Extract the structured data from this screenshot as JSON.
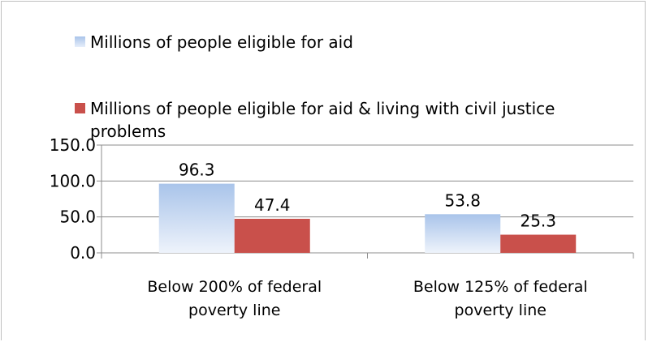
{
  "chart_data": {
    "type": "bar",
    "categories": [
      [
        "Below 200% of federal",
        "poverty line"
      ],
      [
        "Below 125% of federal",
        "poverty line"
      ]
    ],
    "series": [
      {
        "name": "Millions of people eligible for aid",
        "values": [
          96.3,
          53.8
        ],
        "value_labels": [
          "96.3",
          "53.8"
        ],
        "color": "#b9d0f0"
      },
      {
        "name": "Millions of people eligible for aid & living with civil justice problems",
        "values": [
          47.4,
          25.3
        ],
        "value_labels": [
          "47.4",
          "25.3"
        ],
        "color": "#c9504b"
      }
    ],
    "ylim": [
      0,
      150
    ],
    "yticks": [
      0,
      50,
      100,
      150
    ],
    "ytick_labels": [
      "0.0",
      "50.0",
      "100.0",
      "150.0"
    ],
    "grid": true,
    "legend_position": "top"
  }
}
